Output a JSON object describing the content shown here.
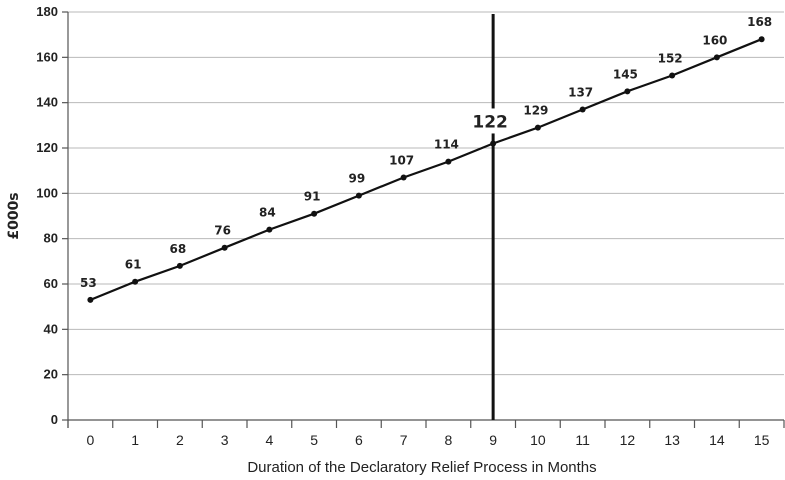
{
  "chart_data": {
    "type": "line",
    "title": "",
    "xlabel": "Duration of the Declaratory Relief Process in Months",
    "ylabel": "£000s",
    "x": [
      0,
      1,
      2,
      3,
      4,
      5,
      6,
      7,
      8,
      9,
      10,
      11,
      12,
      13,
      14,
      15
    ],
    "series": [
      {
        "values": [
          53,
          61,
          68,
          76,
          84,
          91,
          99,
          107,
          114,
          122,
          129,
          137,
          145,
          152,
          160,
          168
        ]
      }
    ],
    "data_labels": [
      "53",
      "61",
      "68",
      "76",
      "84",
      "91",
      "99",
      "107",
      "114",
      "122",
      "129",
      "137",
      "145",
      "152",
      "160",
      "168"
    ],
    "highlight": {
      "x": 9,
      "label": "122"
    },
    "ylim": [
      0,
      180
    ],
    "yticks": [
      0,
      20,
      40,
      60,
      80,
      100,
      120,
      140,
      160,
      180
    ],
    "xticks": [
      "0",
      "1",
      "2",
      "3",
      "4",
      "5",
      "6",
      "7",
      "8",
      "9",
      "10",
      "11",
      "12",
      "13",
      "14",
      "15"
    ],
    "grid": true,
    "legend": false,
    "line_color": "#111111",
    "grid_color": "#b9b9b9"
  }
}
